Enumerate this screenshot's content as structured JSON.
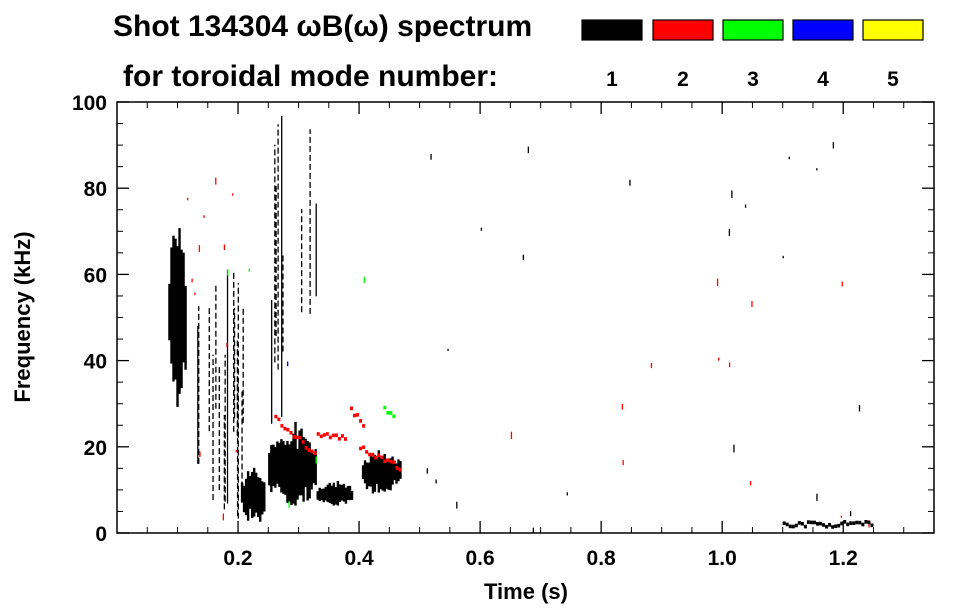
{
  "chart_data": {
    "type": "heatmap",
    "title": "Shot 134304 ωB(ω) spectrum",
    "subtitle": "for toroidal mode number:",
    "xlabel": "Time (s)",
    "ylabel": "Frequency (kHz)",
    "xlim": [
      0.0,
      1.35
    ],
    "ylim": [
      0,
      100
    ],
    "x_ticks": [
      0.2,
      0.4,
      0.6,
      0.8,
      1.0,
      1.2
    ],
    "x_tick_labels": [
      "0.2",
      "0.4",
      "0.6",
      "0.8",
      "1.0",
      "1.2"
    ],
    "y_ticks": [
      0,
      20,
      40,
      60,
      80,
      100
    ],
    "y_tick_labels": [
      "0",
      "20",
      "40",
      "60",
      "80",
      "100"
    ],
    "grid": false,
    "legend": {
      "placement": "top-right",
      "entries": [
        {
          "label": "1",
          "color": "#000000"
        },
        {
          "label": "2",
          "color": "#ff0000"
        },
        {
          "label": "3",
          "color": "#00ff00"
        },
        {
          "label": "4",
          "color": "#0000ff"
        },
        {
          "label": "5",
          "color": "#ffff00"
        }
      ]
    },
    "features": [
      {
        "mode": "1",
        "kind": "blob",
        "t": [
          0.085,
          0.115
        ],
        "f": [
          30,
          70
        ]
      },
      {
        "mode": "1",
        "kind": "streaks",
        "t": [
          0.115,
          0.21
        ],
        "f": [
          3,
          68
        ],
        "n": 16
      },
      {
        "mode": "1",
        "kind": "blob",
        "t": [
          0.205,
          0.245
        ],
        "f": [
          2,
          15
        ]
      },
      {
        "mode": "1",
        "kind": "blob",
        "t": [
          0.25,
          0.33
        ],
        "f": [
          5,
          25
        ]
      },
      {
        "mode": "1",
        "kind": "blob",
        "t": [
          0.33,
          0.39
        ],
        "f": [
          6,
          12
        ]
      },
      {
        "mode": "1",
        "kind": "blob",
        "t": [
          0.405,
          0.47
        ],
        "f": [
          9,
          19
        ]
      },
      {
        "mode": "1",
        "kind": "streaks",
        "t": [
          0.255,
          0.33
        ],
        "f": [
          25,
          100
        ],
        "n": 9
      },
      {
        "mode": "2",
        "kind": "chirp",
        "t": [
          0.26,
          0.33
        ],
        "f": [
          27,
          18
        ]
      },
      {
        "mode": "2",
        "kind": "line",
        "t": [
          0.33,
          0.38
        ],
        "f": [
          23,
          22
        ]
      },
      {
        "mode": "2",
        "kind": "chirp",
        "t": [
          0.385,
          0.41
        ],
        "f": [
          29,
          25
        ]
      },
      {
        "mode": "2",
        "kind": "chirp",
        "t": [
          0.4,
          0.47
        ],
        "f": [
          20,
          15
        ]
      },
      {
        "mode": "2",
        "kind": "specks",
        "t": [
          0.1,
          0.22
        ],
        "f": [
          3,
          90
        ],
        "n": 12
      },
      {
        "mode": "3",
        "kind": "specks",
        "t": [
          0.12,
          0.47
        ],
        "f": [
          5,
          62
        ],
        "n": 5
      },
      {
        "mode": "3",
        "kind": "chirp",
        "t": [
          0.44,
          0.46
        ],
        "f": [
          29,
          27
        ]
      },
      {
        "mode": "4",
        "kind": "specks",
        "t": [
          0.28,
          0.3
        ],
        "f": [
          37,
          40
        ],
        "n": 1
      },
      {
        "mode": "1",
        "kind": "specks",
        "t": [
          0.5,
          1.35
        ],
        "f": [
          1,
          95
        ],
        "n": 22
      },
      {
        "mode": "2",
        "kind": "specks",
        "t": [
          0.55,
          1.33
        ],
        "f": [
          1,
          60
        ],
        "n": 12
      },
      {
        "mode": "1",
        "kind": "line",
        "t": [
          1.1,
          1.25
        ],
        "f": [
          2,
          2
        ]
      }
    ]
  }
}
